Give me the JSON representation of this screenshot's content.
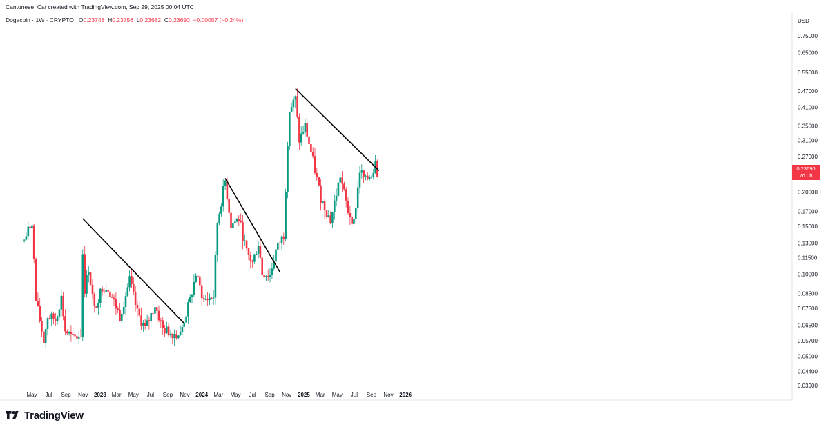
{
  "credit": "Cantonese_Cat created with TradingView.com, Sep 29, 2025 00:04 UTC",
  "legend": {
    "symbol": "Dogecoin · 1W · CRYPTO",
    "open_label": "O",
    "open": "0.23748",
    "high_label": "H",
    "high": "0.23756",
    "low_label": "L",
    "low": "0.23682",
    "close_label": "C",
    "close": "0.23690",
    "change": "−0.00057 (−0.24%)"
  },
  "price_badge": {
    "price": "0.23690",
    "countdown": "7d 0h"
  },
  "brand": "TradingView",
  "colors": {
    "up": "#089981",
    "down": "#f23645",
    "trendline": "#000000",
    "price_line": "#f23645",
    "text": "#131722"
  },
  "chart_data": {
    "type": "candlestick",
    "scale": "log",
    "currency_label": "USD",
    "y_ticks": [
      0.75,
      0.65,
      0.55,
      0.47,
      0.41,
      0.35,
      0.31,
      0.27,
      0.2,
      0.17,
      0.15,
      0.13,
      0.115,
      0.1,
      0.085,
      0.075,
      0.065,
      0.057,
      0.05,
      0.044,
      0.039
    ],
    "y_tick_labels": [
      "0.75000",
      "0.65000",
      "0.55000",
      "0.47000",
      "0.41000",
      "0.35000",
      "0.31000",
      "0.27000",
      "0.20000",
      "0.17000",
      "0.15000",
      "0.13000",
      "0.11500",
      "0.10000",
      "0.08500",
      "0.07500",
      "0.06500",
      "0.05700",
      "0.05000",
      "0.04400",
      "0.03900"
    ],
    "x_ticks": [
      {
        "label": "May",
        "date": "2022-05-01",
        "bold": false
      },
      {
        "label": "Jul",
        "date": "2022-07-01",
        "bold": false
      },
      {
        "label": "Sep",
        "date": "2022-09-01",
        "bold": false
      },
      {
        "label": "Nov",
        "date": "2022-11-01",
        "bold": false
      },
      {
        "label": "2023",
        "date": "2023-01-01",
        "bold": true
      },
      {
        "label": "Mar",
        "date": "2023-03-01",
        "bold": false
      },
      {
        "label": "May",
        "date": "2023-05-01",
        "bold": false
      },
      {
        "label": "Jul",
        "date": "2023-07-01",
        "bold": false
      },
      {
        "label": "Sep",
        "date": "2023-09-01",
        "bold": false
      },
      {
        "label": "Nov",
        "date": "2023-11-01",
        "bold": false
      },
      {
        "label": "2024",
        "date": "2024-01-01",
        "bold": true
      },
      {
        "label": "Mar",
        "date": "2024-03-01",
        "bold": false
      },
      {
        "label": "May",
        "date": "2024-05-01",
        "bold": false
      },
      {
        "label": "Jul",
        "date": "2024-07-01",
        "bold": false
      },
      {
        "label": "Sep",
        "date": "2024-09-01",
        "bold": false
      },
      {
        "label": "Nov",
        "date": "2024-11-01",
        "bold": false
      },
      {
        "label": "2025",
        "date": "2025-01-01",
        "bold": true
      },
      {
        "label": "Mar",
        "date": "2025-03-01",
        "bold": false
      },
      {
        "label": "May",
        "date": "2025-05-01",
        "bold": false
      },
      {
        "label": "Jul",
        "date": "2025-07-01",
        "bold": false
      },
      {
        "label": "Sep",
        "date": "2025-09-01",
        "bold": false
      },
      {
        "label": "Nov",
        "date": "2025-11-01",
        "bold": false
      },
      {
        "label": "2026",
        "date": "2026-01-01",
        "bold": true
      }
    ],
    "last_price": 0.2369,
    "trendlines": [
      {
        "from": {
          "date": "2022-10-31",
          "price": 0.16
        },
        "to": {
          "date": "2023-10-30",
          "price": 0.066
        }
      },
      {
        "from": {
          "date": "2024-03-25",
          "price": 0.225
        },
        "to": {
          "date": "2024-10-07",
          "price": 0.102
        }
      },
      {
        "from": {
          "date": "2024-12-02",
          "price": 0.48
        },
        "to": {
          "date": "2025-09-28",
          "price": 0.24
        }
      }
    ],
    "path": [
      [
        "2022-04-04",
        0.133
      ],
      [
        "2022-05-02",
        0.157
      ],
      [
        "2022-05-16",
        0.08
      ],
      [
        "2022-06-13",
        0.057
      ],
      [
        "2022-06-27",
        0.07
      ],
      [
        "2022-07-25",
        0.068
      ],
      [
        "2022-08-15",
        0.082
      ],
      [
        "2022-08-29",
        0.062
      ],
      [
        "2022-09-26",
        0.058
      ],
      [
        "2022-10-24",
        0.06
      ],
      [
        "2022-10-31",
        0.12
      ],
      [
        "2022-11-07",
        0.088
      ],
      [
        "2022-11-21",
        0.105
      ],
      [
        "2022-12-12",
        0.074
      ],
      [
        "2023-01-09",
        0.09
      ],
      [
        "2023-01-30",
        0.089
      ],
      [
        "2023-03-13",
        0.07
      ],
      [
        "2023-04-17",
        0.095
      ],
      [
        "2023-05-15",
        0.072
      ],
      [
        "2023-06-12",
        0.063
      ],
      [
        "2023-06-26",
        0.068
      ],
      [
        "2023-07-17",
        0.077
      ],
      [
        "2023-08-14",
        0.063
      ],
      [
        "2023-09-11",
        0.061
      ],
      [
        "2023-10-16",
        0.06
      ],
      [
        "2023-10-30",
        0.068
      ],
      [
        "2023-11-20",
        0.08
      ],
      [
        "2023-12-11",
        0.1
      ],
      [
        "2024-01-08",
        0.08
      ],
      [
        "2024-02-12",
        0.083
      ],
      [
        "2024-02-26",
        0.155
      ],
      [
        "2024-03-25",
        0.22
      ],
      [
        "2024-04-15",
        0.152
      ],
      [
        "2024-05-13",
        0.16
      ],
      [
        "2024-06-10",
        0.12
      ],
      [
        "2024-07-01",
        0.11
      ],
      [
        "2024-07-22",
        0.13
      ],
      [
        "2024-08-05",
        0.101
      ],
      [
        "2024-09-02",
        0.099
      ],
      [
        "2024-09-23",
        0.122
      ],
      [
        "2024-10-21",
        0.14
      ],
      [
        "2024-11-04",
        0.31
      ],
      [
        "2024-11-11",
        0.4
      ],
      [
        "2024-12-02",
        0.44
      ],
      [
        "2024-12-16",
        0.31
      ],
      [
        "2025-01-06",
        0.35
      ],
      [
        "2025-02-03",
        0.26
      ],
      [
        "2025-03-03",
        0.19
      ],
      [
        "2025-03-24",
        0.17
      ],
      [
        "2025-04-07",
        0.157
      ],
      [
        "2025-05-12",
        0.23
      ],
      [
        "2025-06-09",
        0.17
      ],
      [
        "2025-06-30",
        0.155
      ],
      [
        "2025-07-21",
        0.24
      ],
      [
        "2025-08-11",
        0.22
      ],
      [
        "2025-09-08",
        0.24
      ],
      [
        "2025-09-15",
        0.27
      ],
      [
        "2025-09-22",
        0.237
      ]
    ]
  }
}
